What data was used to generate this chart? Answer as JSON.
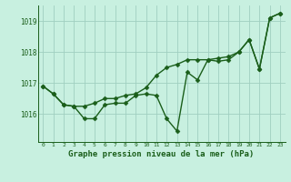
{
  "title": "Graphe pression niveau de la mer (hPa)",
  "background_color": "#c8f0e0",
  "grid_color": "#a0cfc0",
  "line_color": "#1a5e1a",
  "x_values": [
    0,
    1,
    2,
    3,
    4,
    5,
    6,
    7,
    8,
    9,
    10,
    11,
    12,
    13,
    14,
    15,
    16,
    17,
    18,
    19,
    20,
    21,
    22,
    23
  ],
  "y1_values": [
    1016.9,
    1016.65,
    1016.3,
    1016.25,
    1015.85,
    1015.85,
    1016.3,
    1016.35,
    1016.35,
    1016.6,
    1016.65,
    1016.6,
    1015.85,
    1015.45,
    1017.35,
    1017.1,
    1017.75,
    1017.7,
    1017.75,
    1018.0,
    1018.4,
    1017.45,
    1019.1,
    1019.25
  ],
  "y2_values": [
    1016.9,
    1016.65,
    1016.3,
    1016.25,
    1016.25,
    1016.35,
    1016.5,
    1016.5,
    1016.6,
    1016.65,
    1016.85,
    1017.25,
    1017.5,
    1017.6,
    1017.75,
    1017.75,
    1017.75,
    1017.8,
    1017.85,
    1018.0,
    1018.4,
    1017.45,
    1019.1,
    1019.25
  ],
  "ylim": [
    1015.1,
    1019.5
  ],
  "yticks": [
    1016,
    1017,
    1018,
    1019
  ],
  "xlim": [
    -0.5,
    23.5
  ],
  "title_fontsize": 6.5,
  "line_width": 1.0,
  "marker": "D",
  "marker_size": 2.5
}
